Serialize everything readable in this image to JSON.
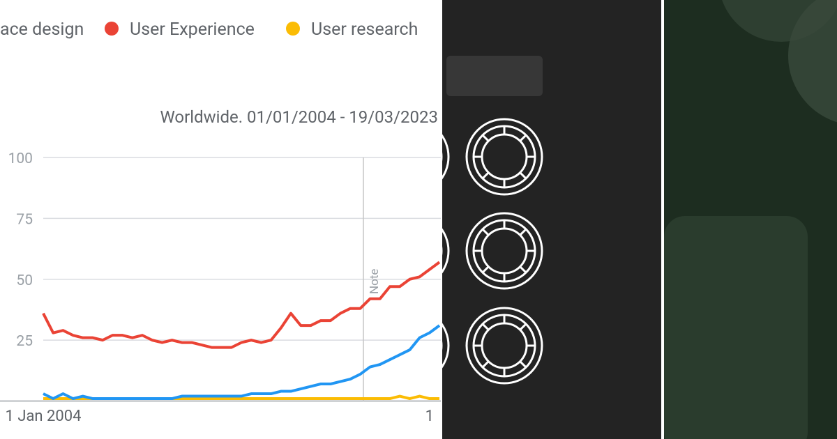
{
  "chart_data": {
    "type": "line",
    "subtitle": "Worldwide. 01/01/2004 - 19/03/2023",
    "annotation": "Note",
    "categories": [
      "1 Jan 2004",
      null,
      null,
      null,
      null,
      null,
      null,
      null,
      null,
      null,
      null,
      null,
      null,
      null,
      null,
      null,
      null,
      null,
      null,
      null,
      null,
      null,
      null,
      null,
      null,
      null,
      null,
      null,
      null,
      null,
      null,
      null,
      null,
      null,
      null,
      null,
      null,
      null,
      null,
      "1",
      null
    ],
    "series": [
      {
        "name": "ace design",
        "color": "#2196f3",
        "values": [
          3,
          1,
          3,
          1,
          2,
          1,
          1,
          1,
          1,
          1,
          1,
          1,
          1,
          1,
          2,
          2,
          2,
          2,
          2,
          2,
          2,
          3,
          3,
          3,
          4,
          4,
          5,
          6,
          7,
          7,
          8,
          9,
          11,
          14,
          15,
          17,
          19,
          21,
          26,
          28,
          31
        ]
      },
      {
        "name": "User Experience",
        "color": "#ea4335",
        "values": [
          36,
          28,
          29,
          27,
          26,
          26,
          25,
          27,
          27,
          26,
          27,
          25,
          24,
          25,
          24,
          24,
          23,
          22,
          22,
          22,
          24,
          25,
          24,
          25,
          30,
          36,
          31,
          31,
          33,
          33,
          36,
          38,
          38,
          42,
          42,
          47,
          47,
          50,
          51,
          54,
          57
        ]
      },
      {
        "name": "User research",
        "color": "#fbbc04",
        "values": [
          1,
          1,
          1,
          1,
          1,
          1,
          1,
          1,
          1,
          1,
          1,
          1,
          1,
          1,
          1,
          1,
          1,
          1,
          1,
          1,
          1,
          1,
          1,
          1,
          1,
          1,
          1,
          1,
          1,
          1,
          1,
          1,
          1,
          1,
          1,
          1,
          2,
          1,
          2,
          1,
          1
        ]
      }
    ],
    "ylim": [
      0,
      100
    ],
    "yticks": [
      25,
      50,
      75,
      100
    ],
    "grid": true
  }
}
